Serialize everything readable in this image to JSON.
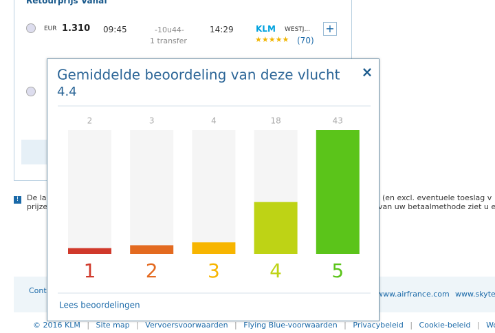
{
  "page": {
    "header": "Retourprijs Vanaf",
    "flight": {
      "currency": "EUR",
      "price": "1.310",
      "depart": "09:45",
      "duration": "-10u44-",
      "transfers": "1 transfer",
      "arrive": "14:29",
      "airline": "KLM",
      "partner": "WESTJ...",
      "reviews": "(70)"
    },
    "notice": {
      "line1_left": "De la",
      "line2_left": "prijze",
      "line1_right": "(en excl. eventuele toeslag v",
      "line2_right": "van uw betaalmethode ziet u e"
    },
    "contact": "Cont",
    "partner_links": [
      "www.airfrance.com",
      "www.skytea"
    ],
    "footer": [
      "© 2016 KLM",
      "Site map",
      "Vervoersvoorwaarden",
      "Flying Blue-voorwaarden",
      "Privacybeleid",
      "Cookie-beleid",
      "Word a"
    ]
  },
  "chart_data": {
    "type": "bar",
    "title": "Gemiddelde beoordeling van deze vlucht",
    "subtitle": "4.4",
    "categories": [
      "1",
      "2",
      "3",
      "4",
      "5"
    ],
    "values": [
      2,
      3,
      4,
      18,
      43
    ],
    "colors": [
      "#d0392b",
      "#e36a20",
      "#f7b500",
      "#bed315",
      "#5bc41a"
    ],
    "ylim": [
      0,
      43
    ],
    "link": "Lees beoordelingen"
  }
}
